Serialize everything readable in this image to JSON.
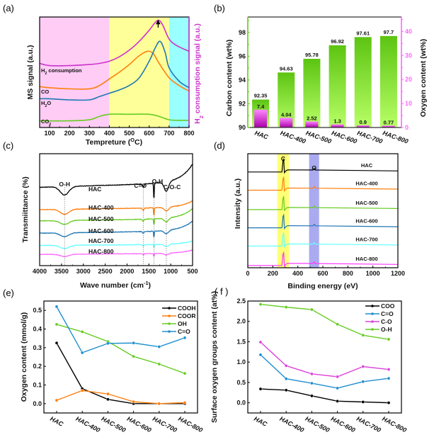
{
  "figure": {
    "panel_labels": [
      "(a)",
      "(b)",
      "(c)",
      "(d)",
      "(e)",
      "( f )"
    ]
  },
  "chart_data": [
    {
      "panel": "(a)",
      "type": "line",
      "title": "",
      "xlabel": "Tempreture (°C)",
      "xlabel_main": "Tempreture (",
      "xlabel_sup": "O",
      "xlabel_tail": "C)",
      "ylabel": "MS signal (a.u.)",
      "y2label": "H2 consumption signal (a.u.)",
      "y2label_pre": "H",
      "y2label_sub": "2",
      "y2label_post": " consumption signal (a.u.)",
      "xlim": [
        50,
        800
      ],
      "xticks": [
        100,
        200,
        300,
        400,
        500,
        600,
        700,
        800
      ],
      "bands": [
        {
          "from": 50,
          "to": 400,
          "color": "#ffccf5"
        },
        {
          "from": 400,
          "to": 700,
          "color": "#ffff99"
        },
        {
          "from": 700,
          "to": 800,
          "color": "#99ffff"
        }
      ],
      "arrow_at": 645,
      "series": [
        {
          "name": "H2 consumption",
          "label_pre": "H",
          "label_sub": "2",
          "label_post": " consumption",
          "color": "#cc33cc",
          "x": [
            50,
            100,
            200,
            300,
            350,
            400,
            450,
            500,
            550,
            600,
            630,
            650,
            670,
            700,
            740,
            800
          ],
          "y": [
            0.58,
            0.56,
            0.56,
            0.57,
            0.58,
            0.6,
            0.64,
            0.7,
            0.78,
            0.88,
            0.95,
            0.97,
            0.92,
            0.8,
            0.74,
            0.69
          ]
        },
        {
          "name": "CO",
          "color": "#ff7f0e",
          "x": [
            50,
            100,
            200,
            300,
            350,
            400,
            450,
            500,
            550,
            590,
            620,
            650,
            700,
            750,
            800
          ],
          "y": [
            0.37,
            0.36,
            0.35,
            0.35,
            0.38,
            0.44,
            0.5,
            0.57,
            0.65,
            0.69,
            0.67,
            0.58,
            0.45,
            0.38,
            0.33
          ]
        },
        {
          "name": "H2O",
          "label_pre": "H",
          "label_sub": "2",
          "label_post": "O",
          "color": "#1f77b4",
          "x": [
            50,
            100,
            200,
            300,
            350,
            400,
            450,
            500,
            550,
            600,
            630,
            655,
            680,
            700,
            750,
            800
          ],
          "y": [
            0.26,
            0.26,
            0.25,
            0.25,
            0.28,
            0.31,
            0.34,
            0.38,
            0.45,
            0.6,
            0.72,
            0.78,
            0.68,
            0.54,
            0.42,
            0.36
          ]
        },
        {
          "name": "CO2",
          "label_pre": "CO",
          "label_sub": "2",
          "label_post": "",
          "color": "#66cc22",
          "x": [
            50,
            200,
            300,
            350,
            400,
            500,
            600,
            650,
            700,
            750,
            800
          ],
          "y": [
            0.06,
            0.06,
            0.07,
            0.1,
            0.12,
            0.12,
            0.12,
            0.1,
            0.07,
            0.065,
            0.065
          ]
        }
      ]
    },
    {
      "panel": "(b)",
      "type": "bar",
      "title": "",
      "xlabel": "",
      "ylabel": "Carbon content (wt%)",
      "y2label": "Oxygen content (wt%)",
      "categories": [
        "HAC",
        "HAC-400",
        "HAC-500",
        "HAC-600",
        "HAC-700",
        "HAC-800"
      ],
      "ylim": [
        90,
        99.3
      ],
      "y2lim": [
        0,
        46
      ],
      "yticks": [
        90,
        92,
        94,
        96,
        98
      ],
      "y2ticks": [
        0,
        10,
        20,
        30,
        40
      ],
      "series": [
        {
          "name": "Carbon content",
          "axis": "left",
          "color": "#66cc11",
          "values": [
            92.35,
            94.63,
            95.78,
            96.92,
            97.61,
            97.7
          ],
          "labels": [
            "92.35",
            "94.63",
            "95.78",
            "96.92",
            "97.61",
            "97.7"
          ]
        },
        {
          "name": "Oxygen content",
          "axis": "right",
          "color": "#ff66ff",
          "values": [
            7.4,
            4.04,
            2.52,
            1.3,
            0.9,
            0.77
          ],
          "labels": [
            "7.4",
            "4.04",
            "2.52",
            "1.3",
            "0.9",
            "0.77"
          ]
        }
      ],
      "left_axis_color": "#66cc11",
      "right_axis_color": "#ff66ff"
    },
    {
      "panel": "(c)",
      "type": "line",
      "title": "",
      "xlabel": "Wave number (cm-1)",
      "xlabel_main": "Wave number (cm",
      "xlabel_sup": "-1",
      "xlabel_tail": ")",
      "ylabel": "Transmiittance (%)",
      "xlim": [
        4000,
        500
      ],
      "xticks": [
        4000,
        3500,
        3000,
        2500,
        2000,
        1500,
        1000,
        500
      ],
      "annotations": [
        {
          "text": "O-H",
          "x": 3430
        },
        {
          "text": "C=O",
          "x": 1630
        },
        {
          "text": "O-H",
          "x": 1385
        },
        {
          "text": "C-O-C",
          "x": 1100
        }
      ],
      "series": [
        {
          "name": "HAC",
          "color": "#000000",
          "offset": 0.7
        },
        {
          "name": "HAC-400",
          "color": "#ff7f0e",
          "offset": 0.5
        },
        {
          "name": "HAC-500",
          "color": "#66cc22",
          "offset": 0.4
        },
        {
          "name": "HAC-600",
          "color": "#1f77b4",
          "offset": 0.29
        },
        {
          "name": "HAC-700",
          "color": "#66ffff",
          "offset": 0.18
        },
        {
          "name": "HAC-800",
          "color": "#ff66ff",
          "offset": 0.1
        }
      ]
    },
    {
      "panel": "(d)",
      "type": "line",
      "title": "",
      "xlabel": "Binding energy (eV)",
      "ylabel": "Intensity (a.u.)",
      "xlim": [
        0,
        1200
      ],
      "xticks": [
        0,
        200,
        400,
        600,
        800,
        1000,
        1200
      ],
      "bands": [
        {
          "from": 235,
          "to": 330,
          "color": "#ffff77",
          "label": "C"
        },
        {
          "from": 490,
          "to": 570,
          "color": "#aaaaf0",
          "label": "O"
        }
      ],
      "series": [
        {
          "name": "HAC",
          "color": "#000000",
          "offset": 0.84
        },
        {
          "name": "HAC-400",
          "color": "#ff7f0e",
          "offset": 0.68
        },
        {
          "name": "HAC-500",
          "color": "#66cc22",
          "offset": 0.51
        },
        {
          "name": "HAC-600",
          "color": "#1f77b4",
          "offset": 0.35
        },
        {
          "name": "HAC-700",
          "color": "#66ffff",
          "offset": 0.19
        },
        {
          "name": "HAC-800",
          "color": "#ff33ff",
          "offset": 0.02
        }
      ]
    },
    {
      "panel": "(e)",
      "type": "line",
      "title": "",
      "xlabel": "",
      "ylabel": "Oxygen content (mmol/g)",
      "categories": [
        "HAC",
        "HAC-400",
        "HAC-500",
        "HAC-600",
        "HAC-700",
        "HAC-800"
      ],
      "ylim": [
        -0.05,
        0.55
      ],
      "yticks": [
        0.0,
        0.1,
        0.2,
        0.3,
        0.4,
        0.5
      ],
      "ytick_labels": [
        "0.0",
        "0.1",
        "0.2",
        "0.3",
        "0.4",
        "0.5"
      ],
      "legend": "top-right",
      "series": [
        {
          "name": "COOH",
          "color": "#000000",
          "values": [
            0.325,
            0.08,
            0.023,
            0.0,
            0.0,
            0.0
          ]
        },
        {
          "name": "COOR",
          "color": "#ff7f0e",
          "values": [
            0.018,
            0.07,
            0.052,
            0.01,
            0.0,
            0.005
          ]
        },
        {
          "name": "OH",
          "color": "#66cc22",
          "values": [
            0.425,
            0.385,
            0.333,
            0.253,
            0.212,
            0.162
          ]
        },
        {
          "name": "C=O",
          "color": "#1f8fd0",
          "values": [
            0.52,
            0.273,
            0.323,
            0.325,
            0.305,
            0.353
          ]
        }
      ]
    },
    {
      "panel": "( f )",
      "type": "line",
      "title": "",
      "xlabel": "",
      "ylabel": "Surface oxygen groups content (at%)",
      "categories": [
        "HAC",
        "HAC-400",
        "HAC-500",
        "HAC-600",
        "HAC-700",
        "HAC-800"
      ],
      "ylim": [
        -0.25,
        2.5
      ],
      "yticks": [
        0.0,
        0.5,
        1.0,
        1.5,
        2.0,
        2.5
      ],
      "ytick_labels": [
        "0.0",
        "0.5",
        "1.0",
        "1.5",
        "2.0",
        "2.5"
      ],
      "legend": "top-right",
      "series": [
        {
          "name": "COO",
          "color": "#000000",
          "values": [
            0.34,
            0.31,
            0.17,
            0.04,
            0.02,
            0.0
          ]
        },
        {
          "name": "C=O",
          "color": "#1f8fd0",
          "values": [
            1.18,
            0.59,
            0.48,
            0.36,
            0.52,
            0.6
          ]
        },
        {
          "name": "C-O",
          "color": "#dd44dd",
          "values": [
            1.49,
            0.91,
            0.71,
            0.64,
            0.89,
            0.82
          ]
        },
        {
          "name": "O-H",
          "color": "#66cc22",
          "values": [
            2.42,
            2.35,
            2.29,
            1.93,
            1.66,
            1.56
          ]
        }
      ]
    }
  ]
}
